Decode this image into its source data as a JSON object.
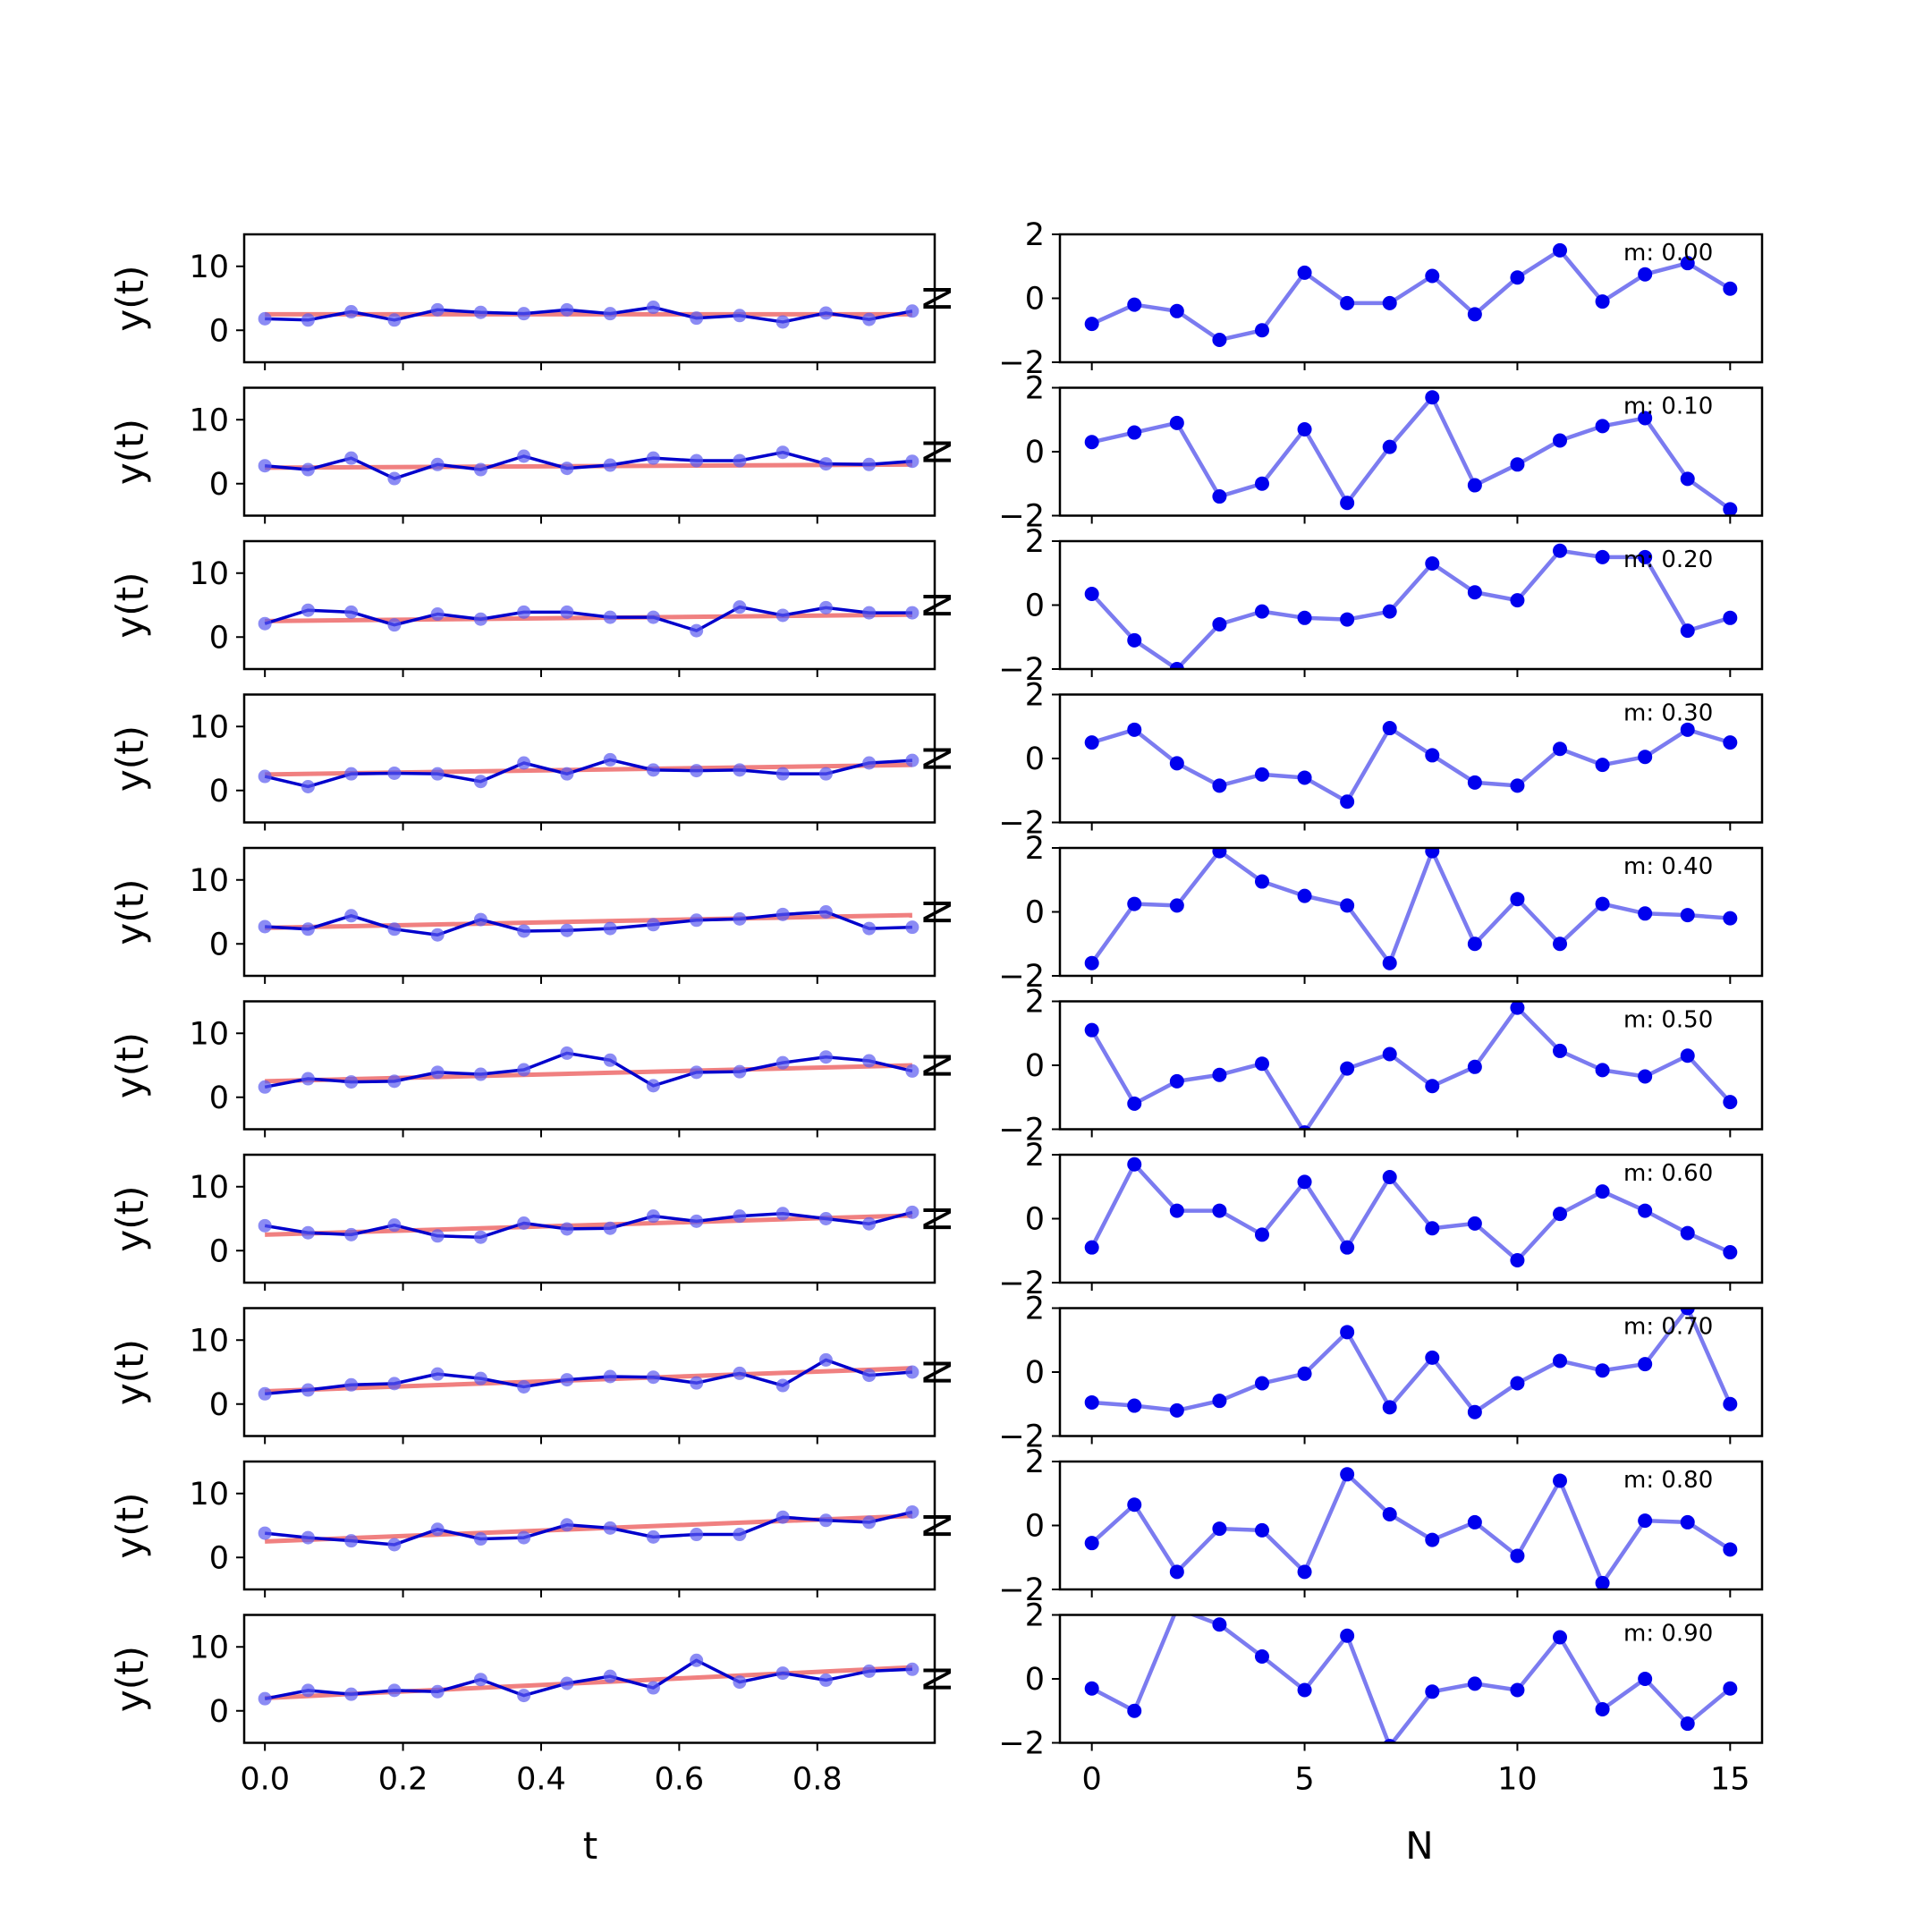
{
  "chart_data": {
    "type": "line",
    "layout": "10 rows x 2 columns of subplots",
    "left_column": {
      "xlabel": "t",
      "ylabel": "y(t)",
      "xlim": [
        -0.03,
        0.97
      ],
      "ylim": [
        -5,
        15
      ],
      "x_ticks": [
        0.0,
        0.2,
        0.4,
        0.6,
        0.8
      ],
      "x_tick_labels": [
        "0.0",
        "0.2",
        "0.4",
        "0.6",
        "0.8"
      ],
      "y_ticks": [
        0,
        10
      ],
      "y_tick_labels": [
        "0",
        "10"
      ],
      "x": [
        0,
        0.0625,
        0.125,
        0.1875,
        0.25,
        0.3125,
        0.375,
        0.4375,
        0.5,
        0.5625,
        0.625,
        0.6875,
        0.75,
        0.8125,
        0.875,
        0.9375
      ],
      "series_colors": {
        "data": "#0000cc",
        "data_markers": "#5a5af0",
        "trend": "#f08080"
      }
    },
    "right_column": {
      "xlabel": "N",
      "ylabel": "N",
      "xlim": [
        -0.75,
        15.75
      ],
      "ylim": [
        -2,
        2
      ],
      "x_ticks": [
        0,
        5,
        10,
        15
      ],
      "x_tick_labels": [
        "0",
        "5",
        "10",
        "15"
      ],
      "y_ticks": [
        -2,
        0,
        2
      ],
      "y_tick_labels": [
        "−2",
        "0",
        "2"
      ],
      "x": [
        0,
        1,
        2,
        3,
        4,
        5,
        6,
        7,
        8,
        9,
        10,
        11,
        12,
        13,
        14,
        15
      ],
      "series_colors": {
        "line": "#7b7bf0",
        "points": "#0000ee"
      }
    },
    "rows": [
      {
        "m_label": "m: 0.00",
        "m": 0.0,
        "trend": [
          2.5,
          2.5
        ],
        "y": [
          1.8,
          1.6,
          2.9,
          1.6,
          3.2,
          2.8,
          2.6,
          3.2,
          2.6,
          3.6,
          1.9,
          2.3,
          1.3,
          2.7,
          1.7,
          3.0
        ],
        "noise": [
          -0.8,
          -0.2,
          -0.4,
          -1.3,
          -1.0,
          0.8,
          -0.15,
          -0.15,
          0.7,
          -0.5,
          0.65,
          1.5,
          -0.1,
          0.75,
          1.1,
          0.3
        ]
      },
      {
        "m_label": "m: 0.10",
        "m": 0.1,
        "trend": [
          2.5,
          3.0
        ],
        "y": [
          2.8,
          2.2,
          4.0,
          0.8,
          3.0,
          2.2,
          4.3,
          2.4,
          2.9,
          4.0,
          3.6,
          3.6,
          4.9,
          3.1,
          3.0,
          3.5
        ],
        "noise": [
          0.3,
          0.6,
          0.9,
          -1.4,
          -1.0,
          0.7,
          -1.6,
          0.15,
          1.7,
          -1.05,
          -0.4,
          0.35,
          0.8,
          1.05,
          -0.85,
          -1.8
        ]
      },
      {
        "m_label": "m: 0.20",
        "m": 0.2,
        "trend": [
          2.5,
          3.5
        ],
        "y": [
          2.1,
          4.2,
          3.9,
          1.9,
          3.6,
          2.8,
          3.9,
          3.9,
          3.1,
          3.1,
          1.0,
          4.7,
          3.4,
          4.6,
          3.8,
          3.8
        ],
        "noise": [
          0.35,
          -1.1,
          -2.0,
          -0.6,
          -0.2,
          -0.4,
          -0.45,
          -0.2,
          1.3,
          0.4,
          0.15,
          1.7,
          1.5,
          1.5,
          -0.8,
          -0.4
        ]
      },
      {
        "m_label": "m: 0.30",
        "m": 0.3,
        "trend": [
          2.5,
          4.0
        ],
        "y": [
          2.2,
          0.6,
          2.6,
          2.7,
          2.6,
          1.4,
          4.3,
          2.6,
          4.8,
          3.2,
          3.1,
          3.2,
          2.6,
          2.6,
          4.3,
          4.7
        ],
        "noise": [
          0.5,
          0.9,
          -0.15,
          -0.85,
          -0.5,
          -0.6,
          -1.35,
          0.95,
          0.1,
          -0.75,
          -0.85,
          0.3,
          -0.2,
          0.05,
          0.9,
          0.5
        ]
      },
      {
        "m_label": "m: 0.40",
        "m": 0.4,
        "trend": [
          2.5,
          4.5
        ],
        "y": [
          2.7,
          2.3,
          4.4,
          2.3,
          1.4,
          3.8,
          2.0,
          2.1,
          2.4,
          3.0,
          3.7,
          3.9,
          4.6,
          5.0,
          2.4,
          2.6
        ],
        "noise": [
          -1.6,
          0.25,
          0.2,
          1.9,
          0.95,
          0.5,
          0.2,
          -1.6,
          1.9,
          -1.0,
          0.4,
          -1.0,
          0.25,
          -0.05,
          -0.1,
          -0.2
        ]
      },
      {
        "m_label": "m: 0.50",
        "m": 0.5,
        "trend": [
          2.5,
          5.0
        ],
        "y": [
          1.6,
          2.9,
          2.4,
          2.5,
          3.9,
          3.6,
          4.3,
          6.9,
          5.8,
          1.8,
          3.9,
          4.0,
          5.4,
          6.3,
          5.7,
          4.1
        ],
        "noise": [
          1.1,
          -1.2,
          -0.5,
          -0.3,
          0.05,
          -2.1,
          -0.1,
          0.35,
          -0.65,
          -0.05,
          1.8,
          0.45,
          -0.15,
          -0.35,
          0.3,
          -1.15
        ]
      },
      {
        "m_label": "m: 0.60",
        "m": 0.6,
        "trend": [
          2.5,
          5.5
        ],
        "y": [
          3.9,
          2.8,
          2.5,
          4.0,
          2.3,
          2.1,
          4.3,
          3.4,
          3.5,
          5.4,
          4.6,
          5.4,
          5.8,
          5.0,
          4.2,
          6.0
        ],
        "noise": [
          -0.9,
          1.7,
          0.25,
          0.25,
          -0.5,
          1.15,
          -0.9,
          1.3,
          -0.3,
          -0.15,
          -1.3,
          0.15,
          0.85,
          0.25,
          -0.45,
          -1.05
        ]
      },
      {
        "m_label": "m: 0.70",
        "m": 0.7,
        "trend": [
          2.0,
          5.6
        ],
        "y": [
          1.6,
          2.2,
          3.0,
          3.2,
          4.7,
          4.0,
          2.7,
          3.8,
          4.3,
          4.2,
          3.3,
          4.8,
          2.9,
          6.9,
          4.5,
          5.0
        ],
        "noise": [
          -0.95,
          -1.05,
          -1.2,
          -0.9,
          -0.35,
          -0.05,
          1.25,
          -1.1,
          0.45,
          -1.25,
          -0.35,
          0.35,
          0.05,
          0.25,
          2.0,
          -1.0
        ]
      },
      {
        "m_label": "m: 0.80",
        "m": 0.8,
        "trend": [
          2.5,
          6.5
        ],
        "y": [
          3.8,
          3.1,
          2.6,
          2.0,
          4.4,
          2.9,
          3.1,
          5.1,
          4.6,
          3.2,
          3.6,
          3.6,
          6.3,
          5.8,
          5.5,
          7.1
        ],
        "noise": [
          -0.55,
          0.65,
          -1.45,
          -0.1,
          -0.15,
          -1.45,
          1.6,
          0.35,
          -0.45,
          0.1,
          -0.95,
          1.4,
          -1.8,
          0.15,
          0.1,
          -0.75
        ]
      },
      {
        "m_label": "m: 0.90",
        "m": 0.9,
        "trend": [
          2.0,
          6.8
        ],
        "y": [
          1.9,
          3.2,
          2.6,
          3.2,
          3.0,
          4.9,
          2.4,
          4.3,
          5.4,
          3.6,
          7.9,
          4.5,
          5.9,
          4.8,
          6.2,
          6.5
        ],
        "noise": [
          -0.3,
          -1.0,
          2.2,
          1.7,
          0.7,
          -0.35,
          1.35,
          -2.1,
          -0.4,
          -0.15,
          -0.35,
          1.3,
          -0.95,
          0.0,
          -1.4,
          -0.3
        ]
      }
    ]
  }
}
